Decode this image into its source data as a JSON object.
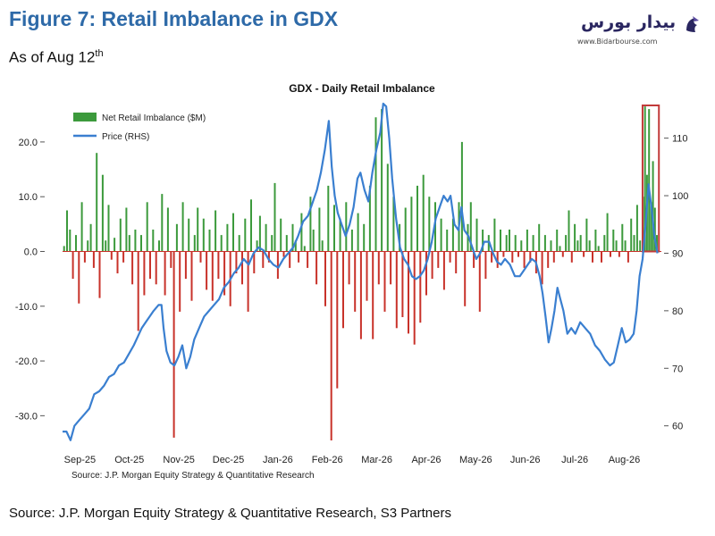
{
  "figure": {
    "title": "Figure 7: Retail Imbalance in GDX",
    "subtitle_main": "As of Aug 12",
    "subtitle_sup": "th"
  },
  "logo": {
    "text": "بیدار بورس",
    "url": "www.Bidarbourse.com",
    "color": "#2a2660"
  },
  "footer": {
    "source": "Source: J.P. Morgan Equity Strategy & Quantitative Research, S3 Partners"
  },
  "chart_data": {
    "type": "bar",
    "title": "GDX - Daily Retail Imbalance",
    "inner_source": "Source: J.P. Morgan Equity Strategy & Quantitative Research",
    "legend": [
      {
        "name": "Net Retail Imbalance ($M)",
        "color": "#3c9a3c"
      },
      {
        "name": "Price (RHS)",
        "color": "#3a7fd0"
      }
    ],
    "legend_position": "top-left",
    "grid": false,
    "x_tick_labels": [
      "Sep-25",
      "Oct-25",
      "Nov-25",
      "Dec-25",
      "Jan-26",
      "Feb-26",
      "Mar-26",
      "Apr-26",
      "May-26",
      "Jun-26",
      "Jul-26",
      "Aug-26"
    ],
    "y_left_ticks": [
      "20.0",
      "10.0",
      "0.0",
      "-10.0",
      "-20.0",
      "-30.0"
    ],
    "y_left_range": [
      -35,
      27
    ],
    "y_right_ticks": [
      "110",
      "100",
      "90",
      "80",
      "70",
      "60"
    ],
    "y_right_range": [
      57,
      116
    ],
    "colors": {
      "positive": "#3c9a3c",
      "negative": "#c8322a",
      "price": "#3a7fd0",
      "highlight": "#c23a3a"
    },
    "highlight": {
      "x_from": 11.72,
      "x_to": 12.05,
      "label": ""
    },
    "bars": [
      {
        "x": 0.03,
        "v": 1
      },
      {
        "x": 0.09,
        "v": 7.5
      },
      {
        "x": 0.15,
        "v": 4
      },
      {
        "x": 0.21,
        "v": -5
      },
      {
        "x": 0.27,
        "v": 3
      },
      {
        "x": 0.33,
        "v": -9.5
      },
      {
        "x": 0.39,
        "v": 9
      },
      {
        "x": 0.45,
        "v": -2
      },
      {
        "x": 0.51,
        "v": 2
      },
      {
        "x": 0.57,
        "v": 5
      },
      {
        "x": 0.63,
        "v": -3
      },
      {
        "x": 0.69,
        "v": 18
      },
      {
        "x": 0.75,
        "v": -8.5
      },
      {
        "x": 0.81,
        "v": 14
      },
      {
        "x": 0.87,
        "v": 2
      },
      {
        "x": 0.93,
        "v": 8.5
      },
      {
        "x": 0.99,
        "v": -1.5
      },
      {
        "x": 1.05,
        "v": 2.5
      },
      {
        "x": 1.11,
        "v": -4
      },
      {
        "x": 1.17,
        "v": 6
      },
      {
        "x": 1.23,
        "v": -2
      },
      {
        "x": 1.29,
        "v": 8
      },
      {
        "x": 1.35,
        "v": 3
      },
      {
        "x": 1.41,
        "v": -6
      },
      {
        "x": 1.47,
        "v": 4
      },
      {
        "x": 1.53,
        "v": -14.5
      },
      {
        "x": 1.59,
        "v": 3
      },
      {
        "x": 1.65,
        "v": -8
      },
      {
        "x": 1.71,
        "v": 9
      },
      {
        "x": 1.77,
        "v": -5
      },
      {
        "x": 1.83,
        "v": 4
      },
      {
        "x": 1.89,
        "v": -6
      },
      {
        "x": 1.95,
        "v": 2
      },
      {
        "x": 2.01,
        "v": 10.5
      },
      {
        "x": 2.07,
        "v": -8
      },
      {
        "x": 2.13,
        "v": 8
      },
      {
        "x": 2.19,
        "v": -3
      },
      {
        "x": 2.25,
        "v": -34
      },
      {
        "x": 2.31,
        "v": 5
      },
      {
        "x": 2.37,
        "v": -11
      },
      {
        "x": 2.43,
        "v": 9
      },
      {
        "x": 2.49,
        "v": -5
      },
      {
        "x": 2.55,
        "v": 6
      },
      {
        "x": 2.61,
        "v": -9
      },
      {
        "x": 2.67,
        "v": 3
      },
      {
        "x": 2.73,
        "v": 8
      },
      {
        "x": 2.79,
        "v": -2
      },
      {
        "x": 2.85,
        "v": 6
      },
      {
        "x": 2.91,
        "v": -7
      },
      {
        "x": 2.97,
        "v": 4
      },
      {
        "x": 3.03,
        "v": -9
      },
      {
        "x": 3.09,
        "v": 7.5
      },
      {
        "x": 3.15,
        "v": -5
      },
      {
        "x": 3.21,
        "v": 3
      },
      {
        "x": 3.27,
        "v": -8
      },
      {
        "x": 3.33,
        "v": 5
      },
      {
        "x": 3.39,
        "v": -10
      },
      {
        "x": 3.45,
        "v": 7
      },
      {
        "x": 3.51,
        "v": -4
      },
      {
        "x": 3.57,
        "v": 3
      },
      {
        "x": 3.63,
        "v": -6
      },
      {
        "x": 3.69,
        "v": 6
      },
      {
        "x": 3.75,
        "v": -11
      },
      {
        "x": 3.81,
        "v": 9.5
      },
      {
        "x": 3.87,
        "v": -4
      },
      {
        "x": 3.93,
        "v": 2
      },
      {
        "x": 3.99,
        "v": 6.5
      },
      {
        "x": 4.05,
        "v": -3
      },
      {
        "x": 4.11,
        "v": 5
      },
      {
        "x": 4.17,
        "v": -2
      },
      {
        "x": 4.23,
        "v": 3
      },
      {
        "x": 4.29,
        "v": 12.5
      },
      {
        "x": 4.35,
        "v": -5
      },
      {
        "x": 4.41,
        "v": 6
      },
      {
        "x": 4.47,
        "v": -1
      },
      {
        "x": 4.53,
        "v": 3
      },
      {
        "x": 4.59,
        "v": -3
      },
      {
        "x": 4.65,
        "v": 5
      },
      {
        "x": 4.71,
        "v": 2
      },
      {
        "x": 4.77,
        "v": -2
      },
      {
        "x": 4.83,
        "v": 7
      },
      {
        "x": 4.89,
        "v": 1
      },
      {
        "x": 4.95,
        "v": -3
      },
      {
        "x": 5.01,
        "v": 10
      },
      {
        "x": 5.07,
        "v": 4
      },
      {
        "x": 5.13,
        "v": -6
      },
      {
        "x": 5.19,
        "v": 8
      },
      {
        "x": 5.25,
        "v": 2
      },
      {
        "x": 5.31,
        "v": -10
      },
      {
        "x": 5.37,
        "v": 12
      },
      {
        "x": 5.43,
        "v": -34.5
      },
      {
        "x": 5.49,
        "v": 8.5
      },
      {
        "x": 5.55,
        "v": -25
      },
      {
        "x": 5.61,
        "v": 6
      },
      {
        "x": 5.67,
        "v": -14
      },
      {
        "x": 5.73,
        "v": 9
      },
      {
        "x": 5.79,
        "v": -6
      },
      {
        "x": 5.85,
        "v": 4
      },
      {
        "x": 5.91,
        "v": -11
      },
      {
        "x": 5.97,
        "v": 7
      },
      {
        "x": 6.03,
        "v": -16
      },
      {
        "x": 6.09,
        "v": 5
      },
      {
        "x": 6.15,
        "v": -9
      },
      {
        "x": 6.21,
        "v": 12
      },
      {
        "x": 6.27,
        "v": -16
      },
      {
        "x": 6.33,
        "v": 24.5
      },
      {
        "x": 6.39,
        "v": -6
      },
      {
        "x": 6.45,
        "v": 26
      },
      {
        "x": 6.51,
        "v": -11
      },
      {
        "x": 6.57,
        "v": 16
      },
      {
        "x": 6.63,
        "v": -6
      },
      {
        "x": 6.69,
        "v": 10
      },
      {
        "x": 6.75,
        "v": -14
      },
      {
        "x": 6.81,
        "v": 5
      },
      {
        "x": 6.87,
        "v": -12
      },
      {
        "x": 6.93,
        "v": 8
      },
      {
        "x": 6.99,
        "v": -15
      },
      {
        "x": 7.05,
        "v": 10
      },
      {
        "x": 7.11,
        "v": -17
      },
      {
        "x": 7.17,
        "v": 12
      },
      {
        "x": 7.23,
        "v": -13
      },
      {
        "x": 7.29,
        "v": 14
      },
      {
        "x": 7.35,
        "v": -8
      },
      {
        "x": 7.41,
        "v": 10
      },
      {
        "x": 7.47,
        "v": -5
      },
      {
        "x": 7.53,
        "v": 9
      },
      {
        "x": 7.59,
        "v": -3
      },
      {
        "x": 7.65,
        "v": 6
      },
      {
        "x": 7.71,
        "v": -7
      },
      {
        "x": 7.77,
        "v": 4
      },
      {
        "x": 7.83,
        "v": -2
      },
      {
        "x": 7.89,
        "v": 6
      },
      {
        "x": 7.95,
        "v": -4
      },
      {
        "x": 8.01,
        "v": 9
      },
      {
        "x": 8.07,
        "v": 20
      },
      {
        "x": 8.13,
        "v": -10
      },
      {
        "x": 8.19,
        "v": 5
      },
      {
        "x": 8.25,
        "v": 9
      },
      {
        "x": 8.31,
        "v": -3
      },
      {
        "x": 8.37,
        "v": 6
      },
      {
        "x": 8.43,
        "v": -11
      },
      {
        "x": 8.49,
        "v": 4
      },
      {
        "x": 8.55,
        "v": -5
      },
      {
        "x": 8.61,
        "v": 3
      },
      {
        "x": 8.67,
        "v": -2
      },
      {
        "x": 8.73,
        "v": 6
      },
      {
        "x": 8.79,
        "v": -3
      },
      {
        "x": 8.85,
        "v": 4
      },
      {
        "x": 8.91,
        "v": -1
      },
      {
        "x": 8.97,
        "v": 3
      },
      {
        "x": 9.03,
        "v": 4
      },
      {
        "x": 9.09,
        "v": -2
      },
      {
        "x": 9.15,
        "v": 3
      },
      {
        "x": 9.21,
        "v": -1
      },
      {
        "x": 9.27,
        "v": 2
      },
      {
        "x": 9.33,
        "v": -3
      },
      {
        "x": 9.39,
        "v": 4
      },
      {
        "x": 9.45,
        "v": -2
      },
      {
        "x": 9.51,
        "v": 3
      },
      {
        "x": 9.57,
        "v": -4
      },
      {
        "x": 9.63,
        "v": 5
      },
      {
        "x": 9.69,
        "v": -6
      },
      {
        "x": 9.75,
        "v": 3
      },
      {
        "x": 9.81,
        "v": -3
      },
      {
        "x": 9.87,
        "v": 2
      },
      {
        "x": 9.93,
        "v": -2
      },
      {
        "x": 9.99,
        "v": 4
      },
      {
        "x": 10.05,
        "v": 1
      },
      {
        "x": 10.11,
        "v": -1
      },
      {
        "x": 10.17,
        "v": 3
      },
      {
        "x": 10.23,
        "v": 7.5
      },
      {
        "x": 10.29,
        "v": -2
      },
      {
        "x": 10.35,
        "v": 5
      },
      {
        "x": 10.41,
        "v": 2
      },
      {
        "x": 10.47,
        "v": 3
      },
      {
        "x": 10.53,
        "v": -1
      },
      {
        "x": 10.59,
        "v": 6
      },
      {
        "x": 10.65,
        "v": 2
      },
      {
        "x": 10.71,
        "v": -2
      },
      {
        "x": 10.77,
        "v": 4
      },
      {
        "x": 10.83,
        "v": 1
      },
      {
        "x": 10.89,
        "v": -2
      },
      {
        "x": 10.95,
        "v": 3
      },
      {
        "x": 11.01,
        "v": 7
      },
      {
        "x": 11.07,
        "v": -1
      },
      {
        "x": 11.13,
        "v": 4
      },
      {
        "x": 11.19,
        "v": 2
      },
      {
        "x": 11.25,
        "v": -1
      },
      {
        "x": 11.31,
        "v": 5
      },
      {
        "x": 11.37,
        "v": 2
      },
      {
        "x": 11.43,
        "v": -2
      },
      {
        "x": 11.49,
        "v": 6
      },
      {
        "x": 11.55,
        "v": 3
      },
      {
        "x": 11.61,
        "v": 8.5
      },
      {
        "x": 11.67,
        "v": 2
      },
      {
        "x": 11.73,
        "v": 10
      },
      {
        "x": 11.77,
        "v": 26.5
      },
      {
        "x": 11.81,
        "v": 14
      },
      {
        "x": 11.85,
        "v": 26
      },
      {
        "x": 11.89,
        "v": 9
      },
      {
        "x": 11.93,
        "v": 16.5
      },
      {
        "x": 11.97,
        "v": 8
      },
      {
        "x": 12.01,
        "v": 3
      }
    ],
    "price": [
      [
        0.0,
        59
      ],
      [
        0.08,
        59
      ],
      [
        0.16,
        57.5
      ],
      [
        0.24,
        60
      ],
      [
        0.34,
        61
      ],
      [
        0.44,
        62
      ],
      [
        0.54,
        63
      ],
      [
        0.64,
        65.5
      ],
      [
        0.74,
        66
      ],
      [
        0.84,
        67
      ],
      [
        0.94,
        68.5
      ],
      [
        1.04,
        69
      ],
      [
        1.14,
        70.5
      ],
      [
        1.24,
        71
      ],
      [
        1.34,
        72.5
      ],
      [
        1.44,
        74
      ],
      [
        1.52,
        75.5
      ],
      [
        1.6,
        77
      ],
      [
        1.68,
        78
      ],
      [
        1.76,
        79
      ],
      [
        1.84,
        80
      ],
      [
        1.94,
        81
      ],
      [
        2.0,
        81
      ],
      [
        2.04,
        77
      ],
      [
        2.1,
        73
      ],
      [
        2.18,
        71
      ],
      [
        2.26,
        70.5
      ],
      [
        2.34,
        72
      ],
      [
        2.42,
        74
      ],
      [
        2.5,
        70
      ],
      [
        2.58,
        72
      ],
      [
        2.66,
        75
      ],
      [
        2.76,
        77
      ],
      [
        2.86,
        79
      ],
      [
        2.96,
        80
      ],
      [
        3.06,
        81
      ],
      [
        3.16,
        82
      ],
      [
        3.26,
        84
      ],
      [
        3.36,
        85
      ],
      [
        3.46,
        86.5
      ],
      [
        3.56,
        87.5
      ],
      [
        3.66,
        89
      ],
      [
        3.76,
        88
      ],
      [
        3.86,
        90
      ],
      [
        3.96,
        91
      ],
      [
        4.06,
        90.5
      ],
      [
        4.16,
        89
      ],
      [
        4.26,
        88
      ],
      [
        4.36,
        87.5
      ],
      [
        4.46,
        89
      ],
      [
        4.56,
        90
      ],
      [
        4.66,
        91
      ],
      [
        4.76,
        93
      ],
      [
        4.86,
        95.5
      ],
      [
        4.96,
        96.5
      ],
      [
        5.06,
        99
      ],
      [
        5.14,
        101
      ],
      [
        5.22,
        104
      ],
      [
        5.3,
        108
      ],
      [
        5.38,
        113
      ],
      [
        5.44,
        105
      ],
      [
        5.5,
        100
      ],
      [
        5.56,
        97
      ],
      [
        5.64,
        95
      ],
      [
        5.72,
        93
      ],
      [
        5.8,
        95
      ],
      [
        5.88,
        98
      ],
      [
        5.96,
        103
      ],
      [
        6.02,
        104
      ],
      [
        6.1,
        101
      ],
      [
        6.18,
        99
      ],
      [
        6.26,
        104
      ],
      [
        6.34,
        108
      ],
      [
        6.42,
        111
      ],
      [
        6.48,
        116
      ],
      [
        6.54,
        115.5
      ],
      [
        6.6,
        110
      ],
      [
        6.66,
        103
      ],
      [
        6.74,
        96
      ],
      [
        6.82,
        91
      ],
      [
        6.9,
        89
      ],
      [
        6.98,
        88
      ],
      [
        7.06,
        86
      ],
      [
        7.14,
        85.5
      ],
      [
        7.22,
        86
      ],
      [
        7.3,
        87
      ],
      [
        7.38,
        89
      ],
      [
        7.46,
        92
      ],
      [
        7.54,
        96
      ],
      [
        7.62,
        98
      ],
      [
        7.7,
        100
      ],
      [
        7.78,
        99
      ],
      [
        7.84,
        100
      ],
      [
        7.92,
        95
      ],
      [
        8.0,
        94
      ],
      [
        8.06,
        98
      ],
      [
        8.12,
        94
      ],
      [
        8.2,
        93
      ],
      [
        8.28,
        91
      ],
      [
        8.36,
        89
      ],
      [
        8.44,
        90
      ],
      [
        8.52,
        92
      ],
      [
        8.62,
        92
      ],
      [
        8.7,
        90
      ],
      [
        8.78,
        88.5
      ],
      [
        8.86,
        88
      ],
      [
        8.94,
        89
      ],
      [
        9.04,
        88
      ],
      [
        9.14,
        86
      ],
      [
        9.24,
        86
      ],
      [
        9.32,
        87
      ],
      [
        9.4,
        88
      ],
      [
        9.48,
        89
      ],
      [
        9.56,
        88.5
      ],
      [
        9.64,
        86
      ],
      [
        9.7,
        83
      ],
      [
        9.76,
        79
      ],
      [
        9.82,
        74.5
      ],
      [
        9.88,
        77
      ],
      [
        9.94,
        80
      ],
      [
        10.0,
        84
      ],
      [
        10.06,
        82
      ],
      [
        10.12,
        80
      ],
      [
        10.2,
        76
      ],
      [
        10.28,
        77
      ],
      [
        10.36,
        76
      ],
      [
        10.46,
        78
      ],
      [
        10.56,
        77
      ],
      [
        10.66,
        76
      ],
      [
        10.76,
        74
      ],
      [
        10.86,
        73
      ],
      [
        10.96,
        71.5
      ],
      [
        11.06,
        70.5
      ],
      [
        11.14,
        71
      ],
      [
        11.22,
        74
      ],
      [
        11.3,
        77
      ],
      [
        11.38,
        74.5
      ],
      [
        11.46,
        75
      ],
      [
        11.54,
        76
      ],
      [
        11.6,
        80
      ],
      [
        11.66,
        86
      ],
      [
        11.72,
        89
      ],
      [
        11.78,
        95
      ],
      [
        11.84,
        102
      ],
      [
        11.9,
        98
      ],
      [
        11.96,
        93
      ],
      [
        12.02,
        90
      ]
    ]
  }
}
